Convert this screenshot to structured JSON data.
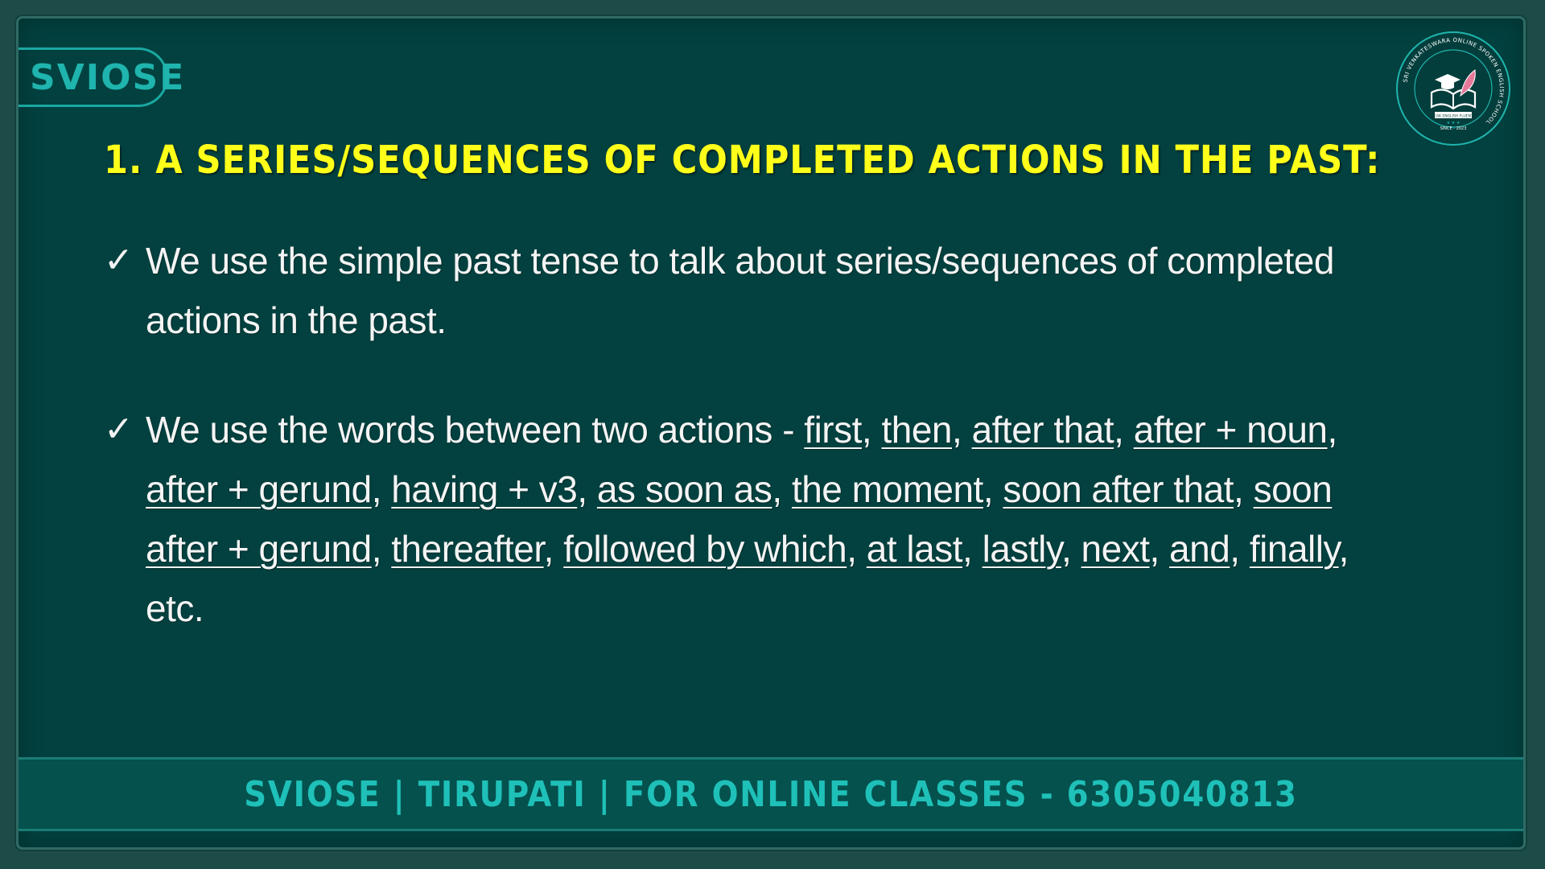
{
  "brand": {
    "label": "SVIOSE"
  },
  "logo": {
    "ring_text": "SRI VENKATESWARA ONLINE SPOKEN ENGLISH SCHOOL",
    "banner": "SPEAK ENGLISH FLUENTLY",
    "since": "SINCE - 2023",
    "stars": "★ ★ ★"
  },
  "heading": "1. A SERIES/SEQUENCES OF COMPLETED ACTIONS IN THE PAST:",
  "bullets": [
    {
      "check": "✓",
      "text": "We use the simple past tense to talk about series/sequences of completed actions in the past."
    },
    {
      "check": "✓",
      "intro": "We use the words between two actions - ",
      "words": [
        "first",
        "then",
        "after that",
        "after + noun",
        "after + gerund",
        "having + v3",
        "as soon as",
        "the moment",
        "soon after that",
        "soon after + gerund",
        "thereafter",
        "followed by which",
        "at last",
        "lastly",
        "next",
        "and",
        "finally"
      ],
      "ending": "etc."
    }
  ],
  "footer": "SVIOSE | TIRUPATI | FOR ONLINE CLASSES - 6305040813",
  "colors": {
    "background": "#02413f",
    "heading": "#ffff1a",
    "accent": "#1fb4ad",
    "text": "#f4f4f4"
  }
}
